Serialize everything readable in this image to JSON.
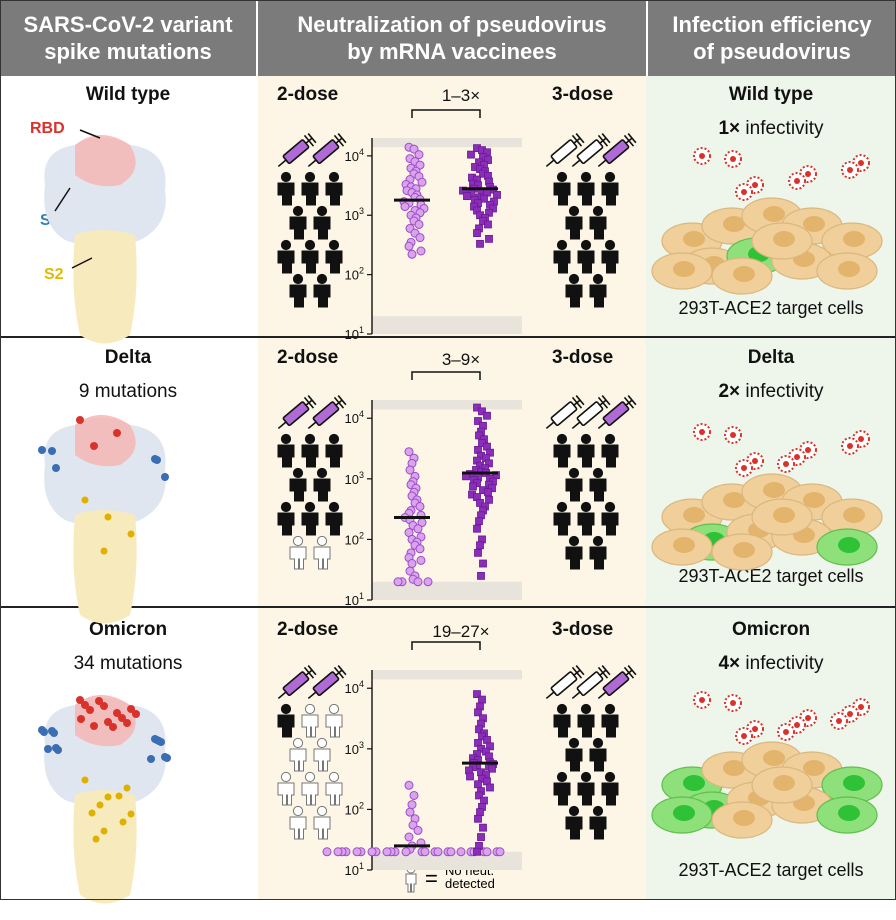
{
  "headers": {
    "col1": "SARS-CoV-2 variant spike mutations",
    "col1_line1": "SARS-CoV-2 variant",
    "col1_line2": "spike mutations",
    "col2_line1": "Neutralization of pseudovirus",
    "col2_line2": "by mRNA vaccinees",
    "col3_line1": "Infection efficiency",
    "col3_line2": "of pseudovirus"
  },
  "structure_labels": {
    "rbd": "RBD",
    "s1": "S1",
    "s2": "S2"
  },
  "colors": {
    "rbd": "#d9322b",
    "s1": "#2f7fb7",
    "s2": "#e6b800",
    "vaccinee": "#b06ad6",
    "header": "#7b7b7b"
  },
  "dose_labels": {
    "two": "2-dose",
    "three": "3-dose"
  },
  "cells_label": "293T-ACE2 target cells",
  "legend": {
    "line1": "No neut.",
    "line2": "detected",
    "equals": "="
  },
  "rows": [
    {
      "variant": "Wild type",
      "mutations": "",
      "fold": "1–3×",
      "infectivity_bold": "1×",
      "infectivity_text": " infectivity",
      "two_dose_neutralizers": 10,
      "three_dose_neutralizers": 10,
      "two_dose_median": 1800,
      "three_dose_median": 2800
    },
    {
      "variant": "Delta",
      "mutations": "9 mutations",
      "fold": "3–9×",
      "infectivity_bold": "2×",
      "infectivity_text": " infectivity",
      "two_dose_neutralizers": 8,
      "three_dose_neutralizers": 10,
      "two_dose_median": 230,
      "three_dose_median": 1250
    },
    {
      "variant": "Omicron",
      "mutations": "34 mutations",
      "fold": "19–27×",
      "infectivity_bold": "4×",
      "infectivity_text": " infectivity",
      "two_dose_neutralizers": 1,
      "three_dose_neutralizers": 10,
      "two_dose_median": 25,
      "three_dose_median": 580
    }
  ],
  "chart_data": [
    {
      "type": "scatter",
      "title": "Wild type",
      "categories": [
        "2-dose",
        "3-dose"
      ],
      "y_scale": "log",
      "ylim": [
        10,
        20000
      ],
      "y_ticks": [
        "10^1",
        "10^2",
        "10^3",
        "10^4"
      ],
      "series": [
        {
          "values": [
            14000,
            13000,
            10500,
            9000,
            8000,
            7000,
            6200,
            5500,
            5000,
            4500,
            4000,
            3600,
            3300,
            3000,
            2800,
            2600,
            2400,
            2200,
            2000,
            1850,
            1700,
            1600,
            1500,
            1400,
            1300,
            1200,
            1100,
            1000,
            900,
            800,
            700,
            600,
            500,
            420,
            350,
            300,
            250,
            220
          ]
        },
        {
          "values": [
            13500,
            12500,
            11500,
            10500,
            9500,
            8500,
            7800,
            7000,
            6500,
            6000,
            5500,
            5000,
            4600,
            4300,
            4000,
            3700,
            3400,
            3200,
            3000,
            2800,
            2700,
            2600,
            2500,
            2400,
            2300,
            2200,
            2100,
            2000,
            1900,
            1800,
            1700,
            1600,
            1500,
            1400,
            1300,
            1200,
            1100,
            1000,
            900,
            800,
            700,
            600,
            500,
            400,
            330
          ]
        }
      ],
      "medians": [
        1800,
        2800
      ]
    },
    {
      "type": "scatter",
      "title": "Delta",
      "categories": [
        "2-dose",
        "3-dose"
      ],
      "y_scale": "log",
      "ylim": [
        10,
        20000
      ],
      "y_ticks": [
        "10^1",
        "10^2",
        "10^3",
        "10^4"
      ],
      "series": [
        {
          "values": [
            2800,
            2200,
            1800,
            1400,
            1100,
            900,
            800,
            700,
            600,
            520,
            450,
            400,
            350,
            300,
            270,
            250,
            230,
            210,
            190,
            170,
            150,
            130,
            110,
            100,
            90,
            80,
            70,
            60,
            50,
            45,
            40,
            30,
            25,
            22,
            20,
            20,
            20,
            20
          ]
        },
        {
          "values": [
            15000,
            13000,
            11000,
            9000,
            7500,
            6000,
            5200,
            4500,
            3900,
            3400,
            3000,
            2700,
            2400,
            2200,
            2000,
            1800,
            1650,
            1500,
            1400,
            1300,
            1250,
            1200,
            1150,
            1100,
            1050,
            1000,
            950,
            900,
            850,
            800,
            750,
            700,
            650,
            600,
            550,
            500,
            450,
            400,
            350,
            300,
            250,
            200,
            150,
            100,
            80,
            60,
            40,
            25
          ]
        }
      ],
      "medians": [
        230,
        1250
      ]
    },
    {
      "type": "scatter",
      "title": "Omicron",
      "categories": [
        "2-dose",
        "3-dose"
      ],
      "y_scale": "log",
      "ylim": [
        10,
        20000
      ],
      "y_ticks": [
        "10^1",
        "10^2",
        "10^3",
        "10^4"
      ],
      "series": [
        {
          "values": [
            250,
            170,
            120,
            90,
            70,
            55,
            45,
            35,
            28,
            25,
            22,
            20,
            20,
            20,
            20,
            20,
            20,
            20,
            20,
            20,
            20,
            20,
            20,
            20,
            20,
            20,
            20,
            20,
            20,
            20,
            20,
            20,
            20,
            20,
            20,
            20
          ]
        },
        {
          "values": [
            8000,
            6500,
            5000,
            4000,
            3200,
            2600,
            2100,
            1800,
            1600,
            1400,
            1250,
            1100,
            1000,
            900,
            820,
            750,
            700,
            650,
            600,
            580,
            560,
            540,
            520,
            500,
            470,
            440,
            410,
            380,
            350,
            320,
            290,
            260,
            230,
            200,
            170,
            140,
            110,
            90,
            70,
            50,
            35,
            25,
            20
          ]
        }
      ],
      "medians": [
        25,
        580
      ]
    }
  ]
}
